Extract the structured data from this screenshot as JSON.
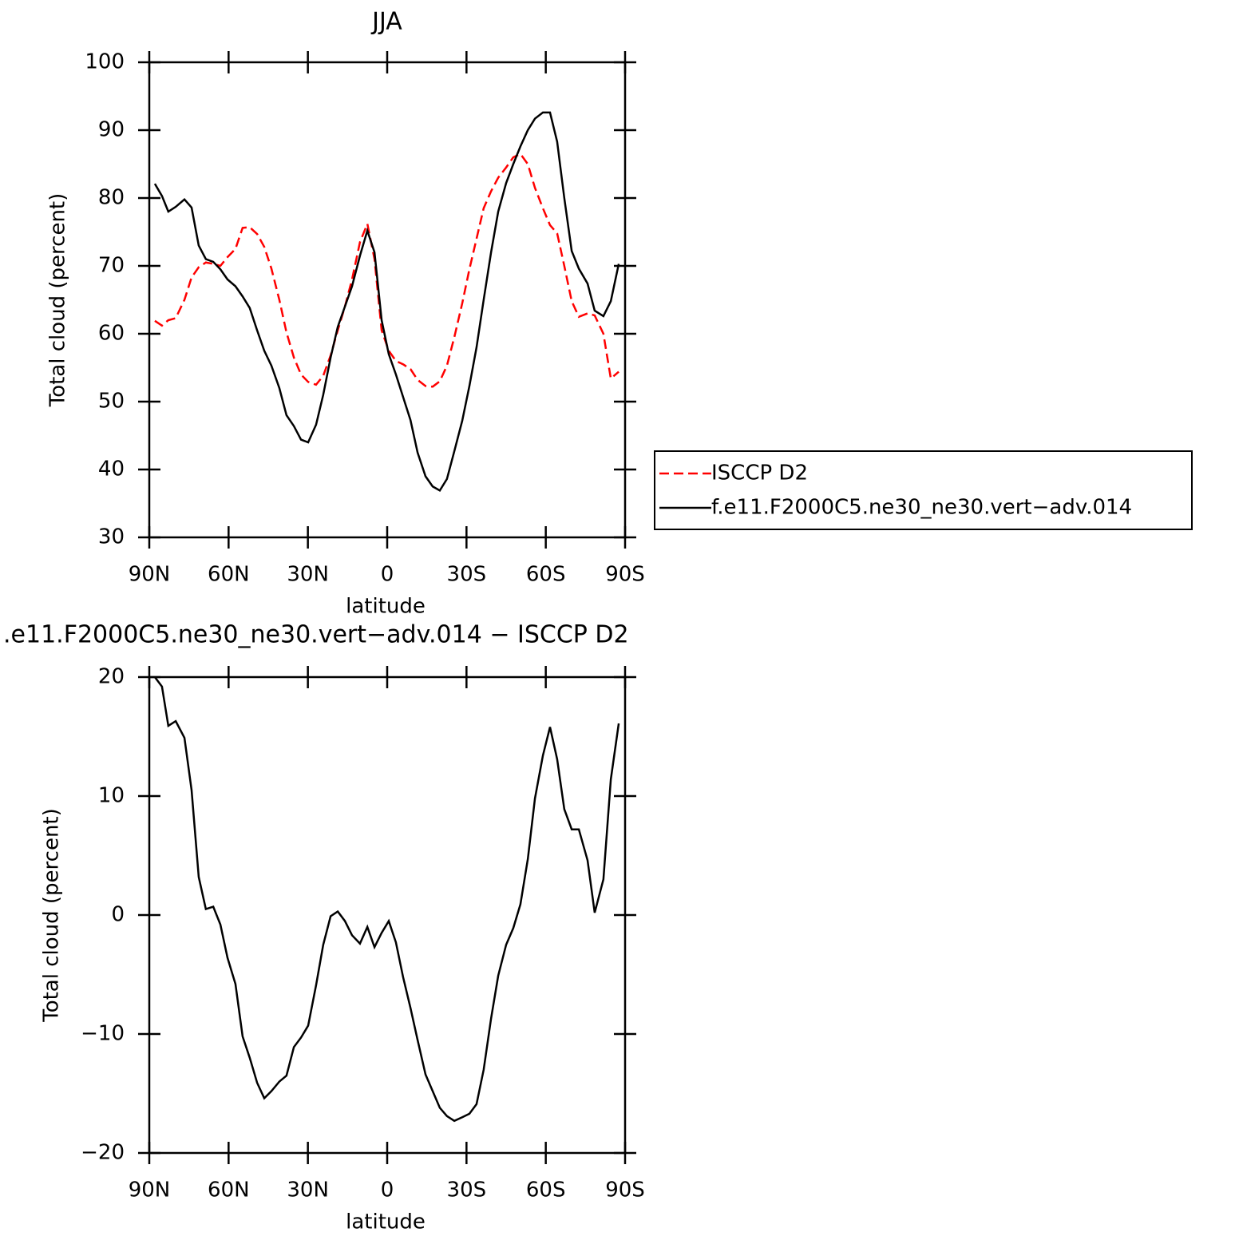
{
  "chart_data": [
    {
      "type": "line",
      "title": "JJA",
      "xlabel": "latitude",
      "ylabel": "Total cloud (percent)",
      "x": [
        87.9,
        85.2,
        82.8,
        80,
        76.7,
        74,
        71.3,
        68.6,
        65.8,
        63.1,
        60.4,
        57.4,
        54.7,
        52,
        49.2,
        46.5,
        43.8,
        40.8,
        38.1,
        35.3,
        32.6,
        29.9,
        26.9,
        24.2,
        21.4,
        18.7,
        16,
        13.3,
        10.3,
        7.5,
        4.8,
        2.1,
        -0.6,
        -3.3,
        -6,
        -8.8,
        -11.5,
        -14.5,
        -17.2,
        -19.9,
        -22.6,
        -25.4,
        -28.4,
        -31.1,
        -33.8,
        -36.5,
        -39.3,
        -42,
        -45,
        -47.7,
        -50.4,
        -53.2,
        -55.9,
        -58.9,
        -61.6,
        -64.3,
        -67,
        -69.8,
        -72.5,
        -75.8,
        -78.5,
        -81.8,
        -84.6,
        -87.6
      ],
      "series": [
        {
          "name": "ISCCP D2",
          "color": "#ff0000",
          "dashed": true,
          "values": [
            61.9,
            61.2,
            62,
            62.3,
            65,
            68.3,
            69.8,
            70.5,
            70.3,
            70,
            71.3,
            72.5,
            75.6,
            75.7,
            74.7,
            72.8,
            69.6,
            65,
            60.2,
            56.5,
            54,
            52.9,
            52.5,
            53.8,
            56.8,
            60.5,
            64,
            68,
            73.5,
            76.2,
            71,
            60.5,
            57.5,
            56,
            55.5,
            54.8,
            53.2,
            52.3,
            52.2,
            53,
            55.3,
            59.5,
            64.5,
            69.5,
            74,
            78.5,
            81,
            83,
            84.5,
            86,
            86.5,
            85,
            81.5,
            78.5,
            76,
            74.8,
            70,
            64.8,
            62.5,
            63,
            62.7,
            60,
            53.4,
            54.4
          ]
        },
        {
          "name": "f.e11.F2000C5.ne30_ne30.vert−adv.014",
          "color": "#000000",
          "dashed": false,
          "values": [
            82.1,
            80.3,
            78,
            78.7,
            79.8,
            78.6,
            73,
            71,
            70.6,
            69.5,
            68,
            67,
            65.5,
            63.8,
            60.5,
            57.5,
            55.3,
            52,
            48,
            46.4,
            44.4,
            44,
            46.6,
            51,
            56.5,
            61,
            64,
            67,
            71.5,
            75.2,
            72,
            62,
            57,
            54,
            50.7,
            47.3,
            42.5,
            39,
            37.5,
            36.9,
            38.6,
            42.7,
            47.2,
            52.3,
            58,
            65,
            72,
            78,
            82.2,
            85,
            87.6,
            90,
            91.7,
            92.6,
            92.6,
            88.3,
            80,
            72.2,
            69.6,
            67.4,
            63.4,
            62.6,
            64.8,
            70.3
          ]
        }
      ],
      "xlim": [
        90,
        -90
      ],
      "ylim": [
        30,
        100
      ],
      "xticks": [
        {
          "value": 90,
          "label": "90N"
        },
        {
          "value": 60,
          "label": "60N"
        },
        {
          "value": 30,
          "label": "30N"
        },
        0,
        {
          "value": -30,
          "label": "30S"
        },
        {
          "value": -60,
          "label": "60S"
        },
        {
          "value": -90,
          "label": "90S"
        }
      ],
      "yticks": [
        30,
        40,
        50,
        60,
        70,
        80,
        90,
        100
      ],
      "legend": "right"
    },
    {
      "type": "line",
      "title": ".e11.F2000C5.ne30_ne30.vert−adv.014 − ISCCP D2",
      "xlabel": "latitude",
      "ylabel": "Total cloud (percent)",
      "x": [
        87.9,
        85.2,
        82.8,
        80,
        76.7,
        74,
        71.3,
        68.6,
        65.8,
        63.1,
        60.4,
        57.4,
        54.7,
        52,
        49.2,
        46.5,
        43.8,
        40.8,
        38.1,
        35.3,
        32.6,
        29.9,
        26.9,
        24.2,
        21.4,
        18.7,
        16,
        13.3,
        10.3,
        7.5,
        4.8,
        2.1,
        -0.6,
        -3.3,
        -6,
        -8.8,
        -11.5,
        -14.5,
        -17.2,
        -19.9,
        -22.6,
        -25.4,
        -28.4,
        -31.1,
        -33.8,
        -36.5,
        -39.3,
        -42,
        -45,
        -47.7,
        -50.4,
        -53.2,
        -55.9,
        -58.9,
        -61.6,
        -64.3,
        -67,
        -69.8,
        -72.5,
        -75.8,
        -78.5,
        -81.8,
        -84.6,
        -87.6
      ],
      "color": "#000000",
      "values": [
        20,
        19.2,
        15.9,
        16.3,
        14.9,
        10.5,
        3.2,
        0.5,
        0.7,
        -0.8,
        -3.6,
        -5.8,
        -10.2,
        -12,
        -14.1,
        -15.4,
        -14.8,
        -14,
        -13.5,
        -11.1,
        -10.3,
        -9.3,
        -5.9,
        -2.5,
        -0.1,
        0.3,
        -0.5,
        -1.7,
        -2.4,
        -1,
        -2.7,
        -1.5,
        -0.5,
        -2.3,
        -5.2,
        -7.8,
        -10.5,
        -13.4,
        -14.8,
        -16.2,
        -16.9,
        -17.3,
        -17,
        -16.7,
        -15.9,
        -13,
        -8.7,
        -5.1,
        -2.5,
        -1.1,
        0.9,
        4.7,
        9.8,
        13.4,
        15.8,
        13.1,
        8.9,
        7.2,
        7.2,
        4.6,
        0.2,
        3,
        11.4,
        16.1
      ],
      "xlim": [
        90,
        -90
      ],
      "ylim": [
        -20,
        20
      ],
      "xticks": [
        {
          "value": 90,
          "label": "90N"
        },
        {
          "value": 60,
          "label": "60N"
        },
        {
          "value": 30,
          "label": "30N"
        },
        0,
        {
          "value": -30,
          "label": "30S"
        },
        {
          "value": -60,
          "label": "60S"
        },
        {
          "value": -90,
          "label": "90S"
        }
      ],
      "yticks": [
        {
          "value": -20,
          "label": "−20"
        },
        {
          "value": -10,
          "label": "−10"
        },
        0,
        10,
        20
      ]
    }
  ]
}
